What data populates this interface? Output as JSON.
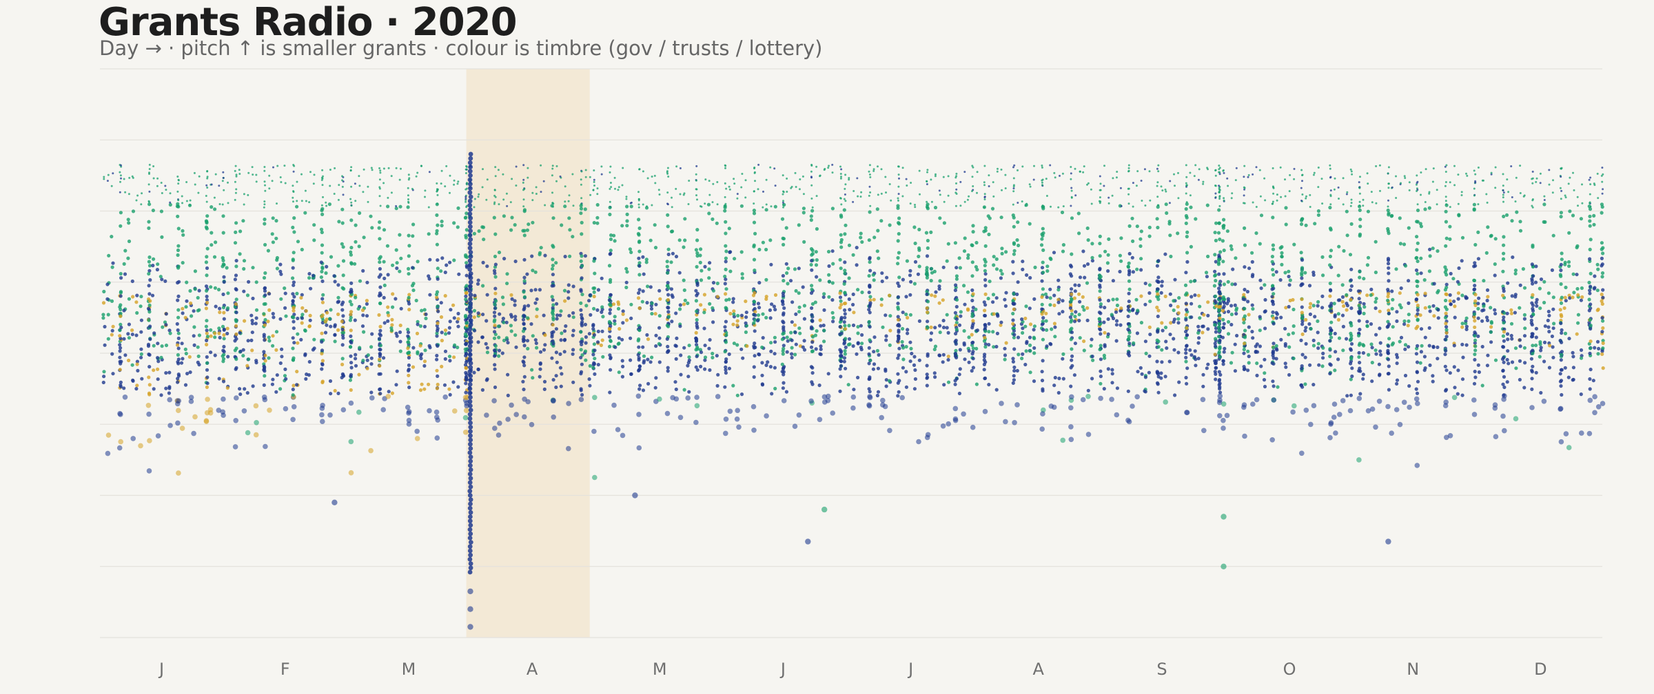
{
  "chart_data": {
    "type": "scatter",
    "title": "Grants Radio · 2020",
    "subtitle": "Day → · pitch ↑ is smaller grants · colour is timbre (gov / trusts / lottery)",
    "year": 2020,
    "x_axis": {
      "type": "date",
      "range": [
        "2020-01-01",
        "2020-12-31"
      ]
    },
    "y_axis": {
      "direction": "down",
      "meaning": "smaller grants higher",
      "range": [
        0,
        8
      ],
      "tick_labels_shown": false
    },
    "month_ticks": [
      {
        "label": "J",
        "date": "2020-01-16"
      },
      {
        "label": "F",
        "date": "2020-02-15"
      },
      {
        "label": "M",
        "date": "2020-03-16"
      },
      {
        "label": "A",
        "date": "2020-04-15"
      },
      {
        "label": "M",
        "date": "2020-05-16"
      },
      {
        "label": "J",
        "date": "2020-06-15"
      },
      {
        "label": "J",
        "date": "2020-07-16"
      },
      {
        "label": "A",
        "date": "2020-08-16"
      },
      {
        "label": "S",
        "date": "2020-09-15"
      },
      {
        "label": "O",
        "date": "2020-10-16"
      },
      {
        "label": "N",
        "date": "2020-11-15"
      },
      {
        "label": "D",
        "date": "2020-12-16"
      }
    ],
    "highlight_band": {
      "start": "2020-03-30",
      "end": "2020-04-29",
      "color": "#f3e9d6"
    },
    "grid": true,
    "legend": "none",
    "series": [
      {
        "name": "gov",
        "color": "#1f3a8f"
      },
      {
        "name": "trusts",
        "color": "#1aa06d"
      },
      {
        "name": "lottery",
        "color": "#d6a227"
      }
    ],
    "notable_points": [
      {
        "date": "2020-03-31",
        "series": "gov",
        "level": 7.85
      },
      {
        "date": "2020-03-31",
        "series": "gov",
        "level": 7.6
      },
      {
        "date": "2020-03-31",
        "series": "gov",
        "level": 7.35
      },
      {
        "date": "2020-09-30",
        "series": "trusts",
        "level": 7.0
      },
      {
        "date": "2020-09-30",
        "series": "trusts",
        "level": 6.3
      },
      {
        "date": "2020-06-21",
        "series": "gov",
        "level": 6.65
      },
      {
        "date": "2020-11-09",
        "series": "gov",
        "level": 6.65
      },
      {
        "date": "2020-02-27",
        "series": "gov",
        "level": 6.1
      },
      {
        "date": "2020-06-25",
        "series": "trusts",
        "level": 6.2
      },
      {
        "date": "2020-05-10",
        "series": "gov",
        "level": 6.0
      }
    ]
  }
}
